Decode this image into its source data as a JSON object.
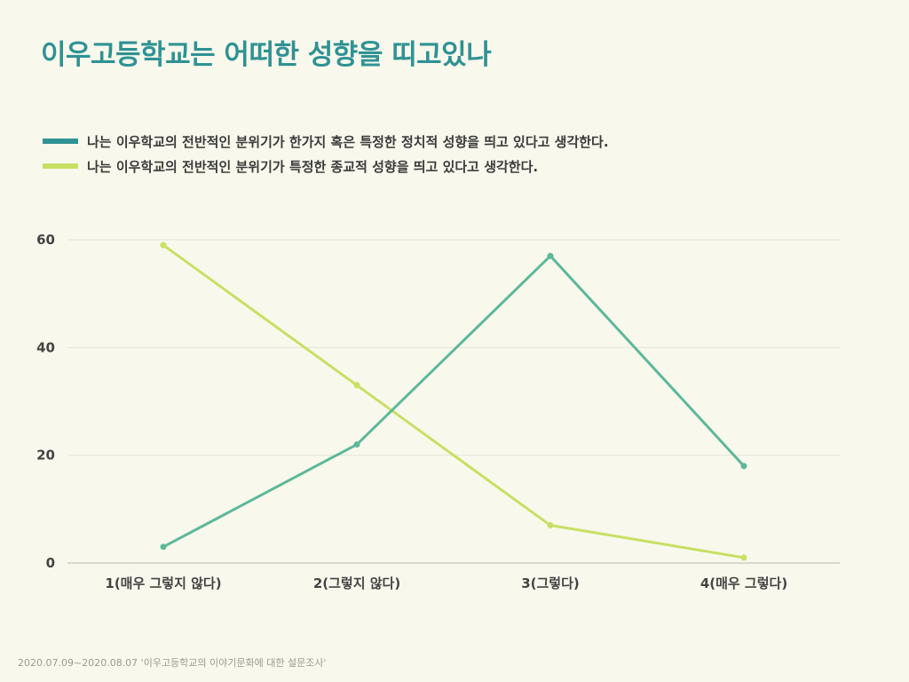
{
  "title": "이우고등학교는 어떠한 성향을 띠고있나",
  "footer": "2020.07.09~2020.08.07 '이우고등학교의 이야기문화에 대한 설문조사'",
  "chart_data": {
    "type": "line",
    "title": "이우고등학교는 어떠한 성향을 띠고있나",
    "categories": [
      "1(매우 그렇지 않다)",
      "2(그렇지 않다)",
      "3(그렇다)",
      "4(매우 그렇다)"
    ],
    "series": [
      {
        "name": "나는 이우학교의 전반적인 분위기가 한가지 혹은 특정한 정치적 성향을 띄고 있다고 생각한다.",
        "values": [
          3,
          22,
          57,
          18
        ],
        "legend_color": "#2f9294",
        "line_color": "#5db89a"
      },
      {
        "name": "나는 이우학교의 전반적인 분위기가 특정한 종교적 성향을 띄고 있다고 생각한다.",
        "values": [
          59,
          33,
          7,
          1
        ],
        "legend_color": "#c7e063",
        "line_color": "#c7e063"
      }
    ],
    "yticks": [
      0,
      20,
      40,
      60
    ],
    "ylim": [
      0,
      60
    ],
    "xlabel": "",
    "ylabel": "",
    "grid": true,
    "legend_position": "top-left"
  }
}
